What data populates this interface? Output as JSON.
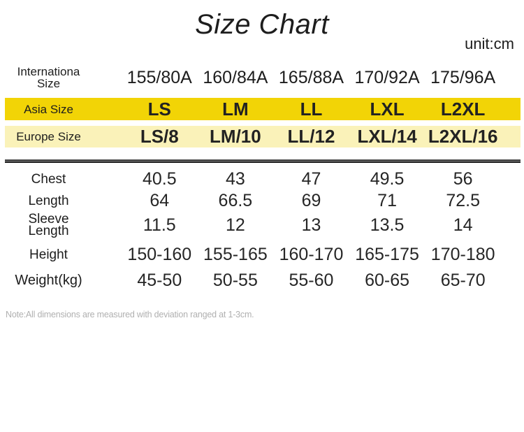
{
  "page": {
    "title": "Size Chart",
    "unit": "unit:cm",
    "note": "Note:All dimensions are measured with deviation ranged at 1-3cm."
  },
  "colors": {
    "asia_row_bg": "#F2D406",
    "europe_row_bg": "#FAF2B9",
    "divider": "#262626",
    "note_text": "#B0B0B0"
  },
  "size_table": {
    "rows": [
      {
        "id": "international-size",
        "label_lines": [
          "Internationa",
          "Size"
        ],
        "values": [
          "155/80A",
          "160/84A",
          "165/88A",
          "170/92A",
          "175/96A"
        ]
      },
      {
        "id": "asia-size",
        "label_lines": [
          "Asia Size"
        ],
        "values": [
          "LS",
          "LM",
          "LL",
          "LXL",
          "L2XL"
        ]
      },
      {
        "id": "europe-size",
        "label_lines": [
          "Europe Size"
        ],
        "values": [
          "LS/8",
          "LM/10",
          "LL/12",
          "LXL/14",
          "L2XL/16"
        ]
      },
      {
        "id": "chest",
        "label_lines": [
          "Chest"
        ],
        "values": [
          "40.5",
          "43",
          "47",
          "49.5",
          "56"
        ]
      },
      {
        "id": "length",
        "label_lines": [
          "Length"
        ],
        "values": [
          "64",
          "66.5",
          "69",
          "71",
          "72.5"
        ]
      },
      {
        "id": "sleeve-length",
        "label_lines": [
          "Sleeve",
          "Length"
        ],
        "values": [
          "11.5",
          "12",
          "13",
          "13.5",
          "14"
        ]
      },
      {
        "id": "height",
        "label_lines": [
          "Height"
        ],
        "values": [
          "150-160",
          "155-165",
          "160-170",
          "165-175",
          "170-180"
        ]
      },
      {
        "id": "weight-kg",
        "label_lines": [
          "Weight(kg)"
        ],
        "values": [
          "45-50",
          "50-55",
          "55-60",
          "60-65",
          "65-70"
        ]
      }
    ]
  }
}
